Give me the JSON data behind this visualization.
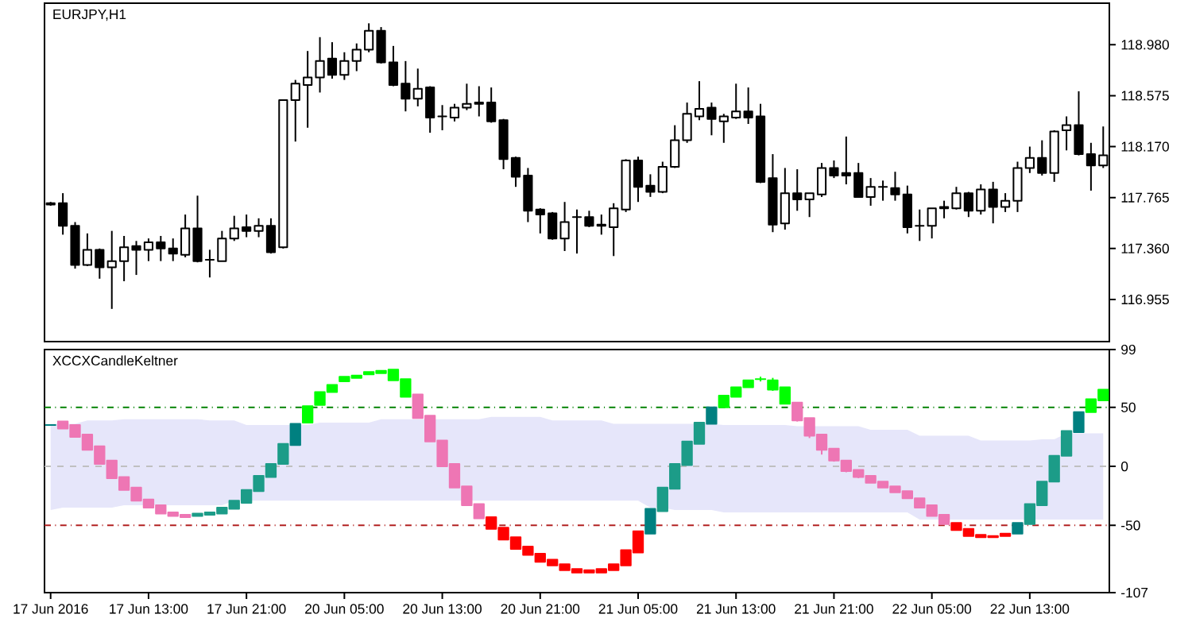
{
  "chart_data": [
    {
      "type": "candlestick",
      "title": "EURJPY,H1",
      "tick_labels": "y",
      "categories": [
        null,
        null,
        null,
        null,
        null,
        null,
        null,
        null,
        null,
        null,
        null,
        null,
        null,
        null,
        null,
        null,
        null,
        null,
        null,
        null,
        null,
        null,
        null,
        null,
        null,
        null,
        null,
        null,
        null,
        null,
        null,
        null,
        null,
        null,
        null,
        null,
        null,
        null,
        null,
        null,
        null,
        null,
        null,
        null,
        null,
        null,
        null,
        null,
        null,
        null,
        null,
        null,
        null,
        null,
        null,
        null,
        null,
        null,
        null,
        null,
        null,
        null,
        null,
        null,
        null,
        null,
        null,
        null,
        null,
        null,
        null,
        null,
        null,
        null,
        null,
        null,
        null,
        null,
        null,
        null,
        null,
        null,
        null,
        null,
        null,
        null,
        null
      ],
      "ohlc": [
        [
          117.71,
          117.73,
          117.7,
          117.72
        ],
        [
          117.72,
          117.8,
          117.47,
          117.54
        ],
        [
          117.54,
          117.57,
          117.2,
          117.23
        ],
        [
          117.23,
          117.48,
          117.22,
          117.35
        ],
        [
          117.35,
          117.36,
          117.12,
          117.21
        ],
        [
          117.21,
          117.5,
          116.88,
          117.26
        ],
        [
          117.26,
          117.46,
          117.1,
          117.37
        ],
        [
          117.38,
          117.42,
          117.15,
          117.35
        ],
        [
          117.35,
          117.44,
          117.26,
          117.41
        ],
        [
          117.41,
          117.46,
          117.26,
          117.36
        ],
        [
          117.36,
          117.44,
          117.26,
          117.32
        ],
        [
          117.31,
          117.63,
          117.29,
          117.52
        ],
        [
          117.52,
          117.78,
          117.25,
          117.26
        ],
        [
          117.27,
          117.35,
          117.13,
          117.27
        ],
        [
          117.26,
          117.5,
          117.26,
          117.44
        ],
        [
          117.44,
          117.62,
          117.42,
          117.52
        ],
        [
          117.53,
          117.63,
          117.45,
          117.5
        ],
        [
          117.5,
          117.6,
          117.45,
          117.54
        ],
        [
          117.54,
          117.6,
          117.32,
          117.33
        ],
        [
          117.37,
          118.54,
          117.36,
          118.54
        ],
        [
          118.54,
          118.7,
          118.21,
          118.67
        ],
        [
          118.66,
          118.93,
          118.32,
          118.72
        ],
        [
          118.72,
          119.04,
          118.6,
          118.85
        ],
        [
          118.87,
          119.0,
          118.71,
          118.74
        ],
        [
          118.74,
          118.92,
          118.7,
          118.85
        ],
        [
          118.85,
          118.99,
          118.77,
          118.94
        ],
        [
          118.94,
          119.15,
          118.92,
          119.09
        ],
        [
          119.09,
          119.12,
          118.83,
          118.84
        ],
        [
          118.84,
          118.97,
          118.65,
          118.66
        ],
        [
          118.67,
          118.85,
          118.45,
          118.55
        ],
        [
          118.55,
          118.79,
          118.49,
          118.63
        ],
        [
          118.64,
          118.65,
          118.28,
          118.4
        ],
        [
          118.41,
          118.5,
          118.3,
          118.41
        ],
        [
          118.4,
          118.51,
          118.37,
          118.48
        ],
        [
          118.48,
          118.67,
          118.46,
          118.51
        ],
        [
          118.52,
          118.65,
          118.41,
          118.51
        ],
        [
          118.52,
          118.64,
          118.36,
          118.37
        ],
        [
          118.38,
          118.39,
          117.99,
          118.07
        ],
        [
          118.08,
          118.09,
          117.85,
          117.93
        ],
        [
          117.94,
          118.0,
          117.57,
          117.66
        ],
        [
          117.67,
          117.68,
          117.48,
          117.63
        ],
        [
          117.64,
          117.65,
          117.43,
          117.44
        ],
        [
          117.44,
          117.73,
          117.34,
          117.57
        ],
        [
          117.61,
          117.67,
          117.32,
          117.61
        ],
        [
          117.61,
          117.66,
          117.53,
          117.54
        ],
        [
          117.55,
          117.63,
          117.47,
          117.54
        ],
        [
          117.53,
          117.72,
          117.3,
          117.68
        ],
        [
          117.67,
          118.07,
          117.65,
          118.06
        ],
        [
          118.06,
          118.09,
          117.73,
          117.85
        ],
        [
          117.86,
          117.95,
          117.77,
          117.81
        ],
        [
          117.81,
          118.05,
          117.8,
          118.01
        ],
        [
          118.01,
          118.34,
          118.0,
          118.22
        ],
        [
          118.22,
          118.52,
          118.2,
          118.43
        ],
        [
          118.41,
          118.69,
          118.38,
          118.47
        ],
        [
          118.48,
          118.52,
          118.26,
          118.39
        ],
        [
          118.37,
          118.43,
          118.2,
          118.41
        ],
        [
          118.4,
          118.67,
          118.39,
          118.45
        ],
        [
          118.45,
          118.64,
          118.35,
          118.4
        ],
        [
          118.41,
          118.51,
          117.88,
          117.89
        ],
        [
          117.92,
          118.11,
          117.49,
          117.55
        ],
        [
          117.56,
          118.0,
          117.51,
          117.8
        ],
        [
          117.8,
          117.99,
          117.66,
          117.75
        ],
        [
          117.75,
          117.8,
          117.61,
          117.8
        ],
        [
          117.79,
          118.04,
          117.77,
          118.0
        ],
        [
          118.0,
          118.06,
          117.92,
          117.94
        ],
        [
          117.96,
          118.25,
          117.87,
          117.94
        ],
        [
          117.96,
          118.04,
          117.77,
          117.77
        ],
        [
          117.77,
          117.92,
          117.7,
          117.85
        ],
        [
          117.85,
          117.9,
          117.74,
          117.85
        ],
        [
          117.84,
          117.97,
          117.74,
          117.79
        ],
        [
          117.79,
          117.86,
          117.48,
          117.53
        ],
        [
          117.54,
          117.67,
          117.42,
          117.54
        ],
        [
          117.54,
          117.68,
          117.44,
          117.68
        ],
        [
          117.68,
          117.74,
          117.6,
          117.69
        ],
        [
          117.68,
          117.85,
          117.67,
          117.8
        ],
        [
          117.8,
          117.81,
          117.61,
          117.66
        ],
        [
          117.66,
          117.87,
          117.63,
          117.83
        ],
        [
          117.83,
          117.89,
          117.56,
          117.69
        ],
        [
          117.69,
          117.8,
          117.65,
          117.74
        ],
        [
          117.74,
          118.05,
          117.65,
          118.0
        ],
        [
          118.0,
          118.17,
          117.96,
          118.08
        ],
        [
          118.08,
          118.22,
          117.94,
          117.96
        ],
        [
          117.96,
          118.3,
          117.89,
          118.29
        ],
        [
          118.3,
          118.41,
          118.14,
          118.34
        ],
        [
          118.34,
          118.61,
          118.1,
          118.11
        ],
        [
          118.11,
          118.2,
          117.82,
          118.02
        ],
        [
          118.02,
          118.33,
          118.0,
          118.1
        ]
      ],
      "ylim": [
        116.62,
        119.31
      ],
      "yticks": [
        {
          "value": 116.955,
          "label": "116.955"
        },
        {
          "value": 117.36,
          "label": "117.360"
        },
        {
          "value": 117.765,
          "label": "117.765"
        },
        {
          "value": 118.17,
          "label": "118.170"
        },
        {
          "value": 118.575,
          "label": "118.575"
        },
        {
          "value": 118.98,
          "label": "118.980"
        }
      ]
    },
    {
      "type": "candlestick",
      "title": "XCCXCandleKeltner",
      "categories": [
        "17 Jun 2016",
        null,
        null,
        null,
        null,
        null,
        null,
        null,
        "17 Jun 13:00",
        null,
        null,
        null,
        null,
        null,
        null,
        null,
        "17 Jun 21:00",
        null,
        null,
        null,
        null,
        null,
        null,
        null,
        "20 Jun 05:00",
        null,
        null,
        null,
        null,
        null,
        null,
        null,
        "20 Jun 13:00",
        null,
        null,
        null,
        null,
        null,
        null,
        null,
        "20 Jun 21:00",
        null,
        null,
        null,
        null,
        null,
        null,
        null,
        "21 Jun 05:00",
        null,
        null,
        null,
        null,
        null,
        null,
        null,
        "21 Jun 13:00",
        null,
        null,
        null,
        null,
        null,
        null,
        null,
        "21 Jun 21:00",
        null,
        null,
        null,
        null,
        null,
        null,
        null,
        "22 Jun 05:00",
        null,
        null,
        null,
        null,
        null,
        null,
        null,
        "22 Jun 13:00",
        null,
        null,
        null,
        null,
        null,
        null
      ],
      "ohlc": [
        [
          35,
          35,
          35,
          35
        ],
        [
          38,
          38,
          32,
          32
        ],
        [
          35,
          35,
          25,
          25
        ],
        [
          27,
          27,
          14,
          14
        ],
        [
          17,
          17,
          2,
          2
        ],
        [
          5,
          5,
          -10,
          -10
        ],
        [
          -9,
          -9,
          -20,
          -20
        ],
        [
          -18,
          -18,
          -29,
          -29
        ],
        [
          -28,
          -28,
          -35,
          -35
        ],
        [
          -33,
          -33,
          -40,
          -40
        ],
        [
          -39,
          -39,
          -42,
          -42
        ],
        [
          -41,
          -41,
          -43,
          -43
        ],
        [
          -42,
          -40,
          -42,
          -40
        ],
        [
          -41,
          -39,
          -41,
          -39
        ],
        [
          -40,
          -35,
          -40,
          -35
        ],
        [
          -36,
          -29,
          -36,
          -29
        ],
        [
          -31,
          -20,
          -31,
          -20
        ],
        [
          -21,
          -8,
          -21,
          -8
        ],
        [
          -9,
          2,
          -9,
          2
        ],
        [
          2,
          19,
          2,
          19
        ],
        [
          18,
          36,
          18,
          36
        ],
        [
          37,
          51,
          37,
          51
        ],
        [
          52,
          63,
          52,
          63
        ],
        [
          63,
          69,
          63,
          69
        ],
        [
          72,
          76,
          72,
          76
        ],
        [
          75,
          77,
          75,
          77
        ],
        [
          78,
          80,
          78,
          80
        ],
        [
          79,
          81,
          79,
          81
        ],
        [
          82,
          82,
          73,
          73
        ],
        [
          74,
          74,
          59,
          59
        ],
        [
          61,
          61,
          41,
          41
        ],
        [
          43,
          43,
          21,
          21
        ],
        [
          22,
          22,
          0,
          0
        ],
        [
          2,
          2,
          -18,
          -18
        ],
        [
          -17,
          -17,
          -33,
          -33
        ],
        [
          -32,
          -32,
          -44,
          -44
        ],
        [
          -43,
          -43,
          -53,
          -53
        ],
        [
          -52,
          -52,
          -62,
          -62
        ],
        [
          -60,
          -60,
          -70,
          -70
        ],
        [
          -68,
          -68,
          -75,
          -75
        ],
        [
          -74,
          -74,
          -81,
          -81
        ],
        [
          -79,
          -79,
          -84,
          -84
        ],
        [
          -83,
          -83,
          -88,
          -88
        ],
        [
          -87,
          -87,
          -90,
          -90
        ],
        [
          -88,
          -88,
          -90,
          -90
        ],
        [
          -90,
          -87,
          -90,
          -87
        ],
        [
          -88,
          -83,
          -88,
          -83
        ],
        [
          -84,
          -71,
          -84,
          -71
        ],
        [
          -73,
          -55,
          -73,
          -55
        ],
        [
          -57,
          -36,
          -57,
          -36
        ],
        [
          -38,
          -18,
          -38,
          -18
        ],
        [
          -19,
          2,
          -19,
          2
        ],
        [
          1,
          21,
          1,
          21
        ],
        [
          19,
          37,
          19,
          37
        ],
        [
          36,
          50,
          36,
          50
        ],
        [
          50,
          60,
          50,
          60
        ],
        [
          59,
          67,
          59,
          67
        ],
        [
          67,
          73,
          67,
          73
        ],
        [
          74,
          76,
          72,
          74
        ],
        [
          73,
          75,
          64,
          65
        ],
        [
          67,
          67,
          53,
          53
        ],
        [
          54,
          54,
          38,
          39
        ],
        [
          41,
          41,
          24,
          26
        ],
        [
          27,
          27,
          10,
          14
        ],
        [
          15,
          15,
          4,
          5
        ],
        [
          5,
          5,
          -5,
          -4
        ],
        [
          -3,
          -3,
          -10,
          -9
        ],
        [
          -8,
          -8,
          -14,
          -14
        ],
        [
          -13,
          -13,
          -18,
          -18
        ],
        [
          -17,
          -17,
          -22,
          -22
        ],
        [
          -21,
          -21,
          -27,
          -27
        ],
        [
          -27,
          -27,
          -35,
          -35
        ],
        [
          -33,
          -33,
          -42,
          -42
        ],
        [
          -41,
          -41,
          -49,
          -49
        ],
        [
          -48,
          -48,
          -54,
          -54
        ],
        [
          -53,
          -53,
          -59,
          -59
        ],
        [
          -58,
          -58,
          -60,
          -60
        ],
        [
          -59,
          -59,
          -60,
          -60
        ],
        [
          -59,
          -57,
          -59,
          -57
        ],
        [
          -57,
          -48,
          -57,
          -48
        ],
        [
          -49,
          -32,
          -49,
          -32
        ],
        [
          -33,
          -13,
          -33,
          -13
        ],
        [
          -13,
          9,
          -13,
          9
        ],
        [
          9,
          30,
          9,
          30
        ],
        [
          29,
          46,
          29,
          46
        ],
        [
          46,
          57,
          46,
          57
        ],
        [
          56,
          65,
          56,
          65
        ]
      ],
      "colors": [
        "#008080",
        "#ee76b4",
        "#ee76b4",
        "#ee76b4",
        "#ee76b4",
        "#ee76b4",
        "#ee76b4",
        "#ee76b4",
        "#ee76b4",
        "#ee76b4",
        "#ee76b4",
        "#ee76b4",
        "#1c9c88",
        "#1c9c88",
        "#1c9c88",
        "#1c9c88",
        "#1c9c88",
        "#1c9c88",
        "#1c9c88",
        "#1c9c88",
        "#008080",
        "#00ff00",
        "#00ff00",
        "#00ff00",
        "#00ff00",
        "#00ff00",
        "#00ff00",
        "#00ff00",
        "#00ff00",
        "#00ff00",
        "#ee76b4",
        "#ee76b4",
        "#ee76b4",
        "#ee76b4",
        "#ee76b4",
        "#ee76b4",
        "#ff0000",
        "#ff0000",
        "#ff0000",
        "#ff0000",
        "#ff0000",
        "#ff0000",
        "#ff0000",
        "#ff0000",
        "#ff0000",
        "#ff0000",
        "#ff0000",
        "#ff0000",
        "#ff0000",
        "#008080",
        "#1c9c88",
        "#1c9c88",
        "#1c9c88",
        "#1c9c88",
        "#008080",
        "#00ff00",
        "#00ff00",
        "#00ff00",
        "#00ff00",
        "#00ff00",
        "#00ff00",
        "#ee76b4",
        "#ee76b4",
        "#ee76b4",
        "#ee76b4",
        "#ee76b4",
        "#ee76b4",
        "#ee76b4",
        "#ee76b4",
        "#ee76b4",
        "#ee76b4",
        "#ee76b4",
        "#ee76b4",
        "#ee76b4",
        "#ff0000",
        "#ff0000",
        "#ff0000",
        "#ff0000",
        "#ff0000",
        "#008080",
        "#1c9c88",
        "#1c9c88",
        "#1c9c88",
        "#1c9c88",
        "#008080",
        "#00ff00",
        "#00ff00"
      ],
      "series": [
        {
          "type": "line",
          "color": "#e6e6fa",
          "values": [
            null,
            null,
            null,
            null,
            null,
            null,
            null,
            null,
            null,
            null,
            null,
            null,
            null,
            null,
            null,
            null,
            null,
            null,
            null,
            null,
            null,
            null,
            null,
            null,
            null,
            null,
            null,
            null,
            null,
            null,
            null,
            null,
            null,
            null,
            null,
            null,
            null,
            null,
            null,
            null,
            null,
            null,
            null,
            null,
            null,
            null,
            null,
            null,
            null,
            null,
            null,
            null,
            null,
            null,
            null,
            null,
            null,
            null,
            null,
            null,
            null,
            null,
            null,
            null,
            null,
            null,
            null,
            null,
            null,
            null,
            null,
            null,
            null,
            null,
            null,
            null,
            null,
            null,
            null,
            null,
            null,
            null,
            null,
            null,
            null,
            null,
            null
          ],
          "upper": [
            36,
            36,
            36,
            39,
            39,
            39,
            40,
            40,
            40,
            40,
            40,
            40,
            40,
            39,
            39,
            39,
            35,
            35,
            35,
            35,
            35,
            35,
            37,
            37,
            37,
            37,
            37,
            40,
            40,
            40,
            40,
            40,
            40,
            40,
            40,
            40,
            42,
            42,
            42,
            42,
            42,
            39,
            39,
            39,
            39,
            39,
            36,
            36,
            36,
            36,
            36,
            36,
            36,
            36,
            36,
            35,
            35,
            35,
            35,
            35,
            35,
            34,
            34,
            34,
            34,
            34,
            34,
            31,
            31,
            31,
            31,
            26,
            26,
            26,
            26,
            26,
            22,
            22,
            22,
            22,
            22,
            23,
            23,
            28,
            28,
            28,
            28
          ],
          "lower": [
            -37,
            -35,
            -35,
            -35,
            -35,
            -35,
            -33,
            -33,
            -33,
            -33,
            -33,
            -33,
            -33,
            -33,
            -33,
            -29,
            -29,
            -29,
            -29,
            -29,
            -29,
            -29,
            -29,
            -29,
            -29,
            -29,
            -29,
            -29,
            -29,
            -29,
            -29,
            -29,
            -29,
            -29,
            -29,
            -29,
            -29,
            -29,
            -29,
            -29,
            -29,
            -29,
            -29,
            -29,
            -29,
            -29,
            -29,
            -29,
            -29,
            -35,
            -35,
            -37,
            -37,
            -37,
            -37,
            -39,
            -39,
            -39,
            -39,
            -39,
            -39,
            -39,
            -39,
            -39,
            -39,
            -39,
            -39,
            -39,
            -39,
            -39,
            -39,
            -45,
            -45,
            -45,
            -45,
            -45,
            -45,
            -45,
            -45,
            -45,
            -45,
            -45,
            -45,
            -45,
            -45,
            -45,
            -45
          ]
        }
      ],
      "ref_lines": [
        {
          "axis": "y",
          "value": 50,
          "color": "#008000",
          "line_style": "dashdot"
        },
        {
          "axis": "y",
          "value": 0,
          "color": "#c0c0c0",
          "line_style": "dashed"
        },
        {
          "axis": "y",
          "value": -50,
          "color": "#b22222",
          "line_style": "dashdot"
        }
      ],
      "ylim": [
        -107,
        99
      ],
      "yticks": [
        99,
        50,
        0,
        -50,
        -107
      ]
    }
  ]
}
